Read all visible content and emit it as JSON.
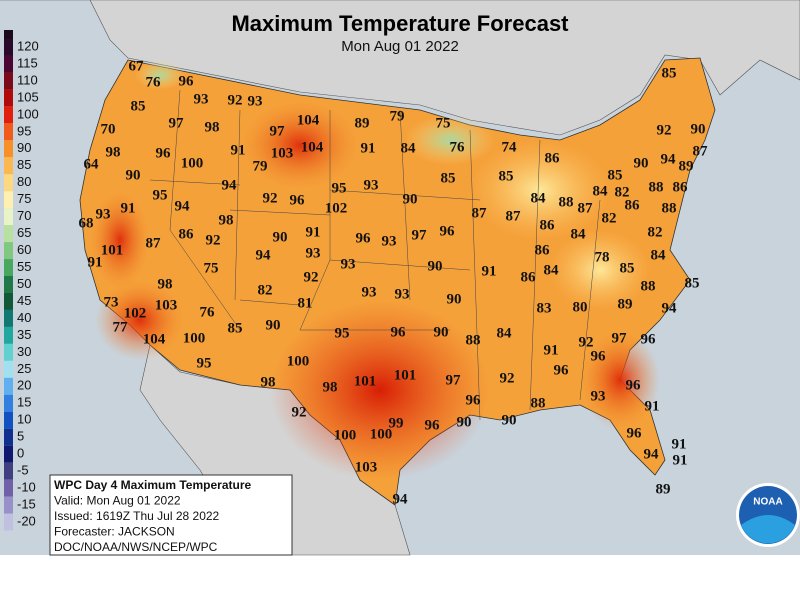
{
  "header": {
    "title": "Maximum Temperature Forecast",
    "subtitle": "Mon Aug 01 2022"
  },
  "legend": {
    "labels": [
      120,
      115,
      110,
      105,
      100,
      95,
      90,
      85,
      80,
      75,
      70,
      65,
      60,
      55,
      50,
      45,
      40,
      35,
      30,
      25,
      20,
      15,
      10,
      5,
      0,
      -5,
      -10,
      -15,
      -20
    ]
  },
  "info_box": {
    "lines": [
      "WPC Day 4 Maximum Temperature",
      "Valid: Mon Aug 01 2022",
      "Issued: 1619Z Thu Jul 28 2022",
      "Forecaster: JACKSON",
      "DOC/NOAA/NWS/NCEP/WPC"
    ]
  },
  "logo": {
    "label": "NOAA"
  },
  "forecast_points": [
    67,
    76,
    96,
    93,
    92,
    93,
    85,
    97,
    98,
    97,
    104,
    89,
    79,
    75,
    85,
    70,
    98,
    96,
    100,
    91,
    103,
    104,
    91,
    84,
    76,
    74,
    86,
    92,
    90,
    64,
    79,
    90,
    94,
    87,
    89,
    90,
    94,
    95,
    93,
    85,
    85,
    85,
    88,
    86,
    95,
    94,
    92,
    96,
    90,
    84,
    84,
    82,
    88,
    87,
    86,
    88,
    93,
    91,
    102,
    98,
    87,
    87,
    86,
    82,
    68,
    87,
    86,
    92,
    90,
    91,
    96,
    93,
    97,
    96,
    84,
    82,
    101,
    94,
    93,
    86,
    78,
    84,
    91,
    75,
    93,
    90,
    91,
    86,
    84,
    85,
    85,
    98,
    82,
    92,
    93,
    93,
    88,
    73,
    103,
    81,
    90,
    83,
    80,
    89,
    94,
    102,
    76,
    77,
    85,
    90,
    95,
    96,
    90,
    88,
    84,
    97,
    96,
    104,
    100,
    91,
    92,
    96,
    100,
    95,
    101,
    101,
    97,
    92,
    96,
    98,
    98,
    96,
    96,
    88,
    93,
    92,
    90,
    91,
    99,
    100,
    100,
    96,
    90,
    96,
    91,
    94,
    91,
    103,
    89,
    94
  ]
}
